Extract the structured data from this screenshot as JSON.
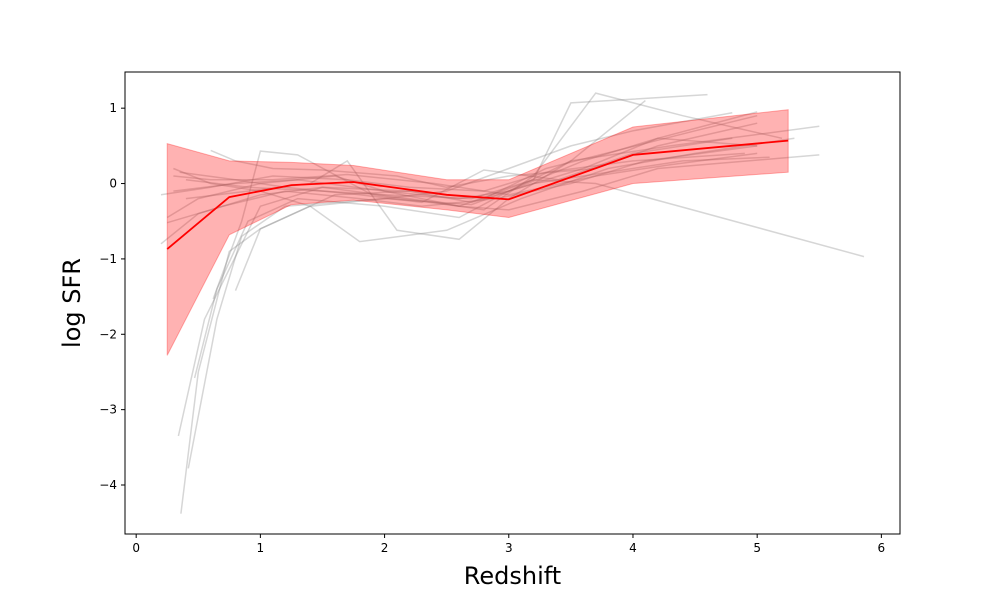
{
  "chart_data": {
    "type": "line",
    "title": "",
    "xlabel": "Redshift",
    "ylabel": "log SFR",
    "xlim": [
      -0.09,
      6.15
    ],
    "ylim": [
      -4.65,
      1.48
    ],
    "xticks": [
      0,
      1,
      2,
      3,
      4,
      5,
      6
    ],
    "yticks": [
      1,
      0,
      -1,
      -2,
      -3,
      -4
    ],
    "xtick_labels": [
      "0",
      "1",
      "2",
      "3",
      "4",
      "5",
      "6"
    ],
    "ytick_labels": [
      "1",
      "0",
      "−1",
      "−2",
      "−3",
      "−4"
    ],
    "grid": false,
    "legend": "none",
    "colors": {
      "median_line": "#ff0000",
      "band_fill": "#ff0000",
      "individual_lines": "#808080"
    },
    "median": {
      "x": [
        0.25,
        0.75,
        1.25,
        1.75,
        2.5,
        3.0,
        4.0,
        5.25
      ],
      "y": [
        -0.87,
        -0.18,
        -0.02,
        0.02,
        -0.15,
        -0.21,
        0.38,
        0.57
      ]
    },
    "band": {
      "x": [
        0.25,
        0.75,
        1.25,
        1.75,
        2.5,
        3.0,
        4.0,
        5.25
      ],
      "lower": [
        -2.28,
        -0.68,
        -0.28,
        -0.22,
        -0.35,
        -0.45,
        0.0,
        0.15
      ],
      "upper": [
        0.53,
        0.3,
        0.28,
        0.24,
        0.05,
        0.05,
        0.75,
        0.98
      ]
    },
    "individual_series": [
      {
        "x": [
          0.36,
          0.5,
          0.75,
          1.0,
          1.6,
          2.2,
          2.8,
          3.3,
          4.5,
          5.0
        ],
        "y": [
          -4.38,
          -2.5,
          -0.9,
          -0.6,
          -0.15,
          -0.1,
          -0.2,
          0.2,
          0.7,
          0.9
        ]
      },
      {
        "x": [
          0.42,
          0.65,
          0.85,
          1.2,
          2.0,
          2.7,
          3.0,
          3.5,
          4.3,
          5.5
        ],
        "y": [
          -3.78,
          -1.8,
          -0.7,
          -0.3,
          -0.2,
          -0.28,
          -0.1,
          0.3,
          0.5,
          0.76
        ]
      },
      {
        "x": [
          0.34,
          0.55,
          1.0,
          1.5,
          2.2,
          2.8,
          3.2,
          3.7,
          4.4,
          5.2
        ],
        "y": [
          -3.35,
          -1.8,
          -0.3,
          -0.05,
          -0.2,
          -0.35,
          0.1,
          1.2,
          0.9,
          0.6
        ]
      },
      {
        "x": [
          0.47,
          0.65,
          0.9,
          1.3,
          2.0,
          2.6,
          3.0,
          3.6,
          4.2,
          5.0
        ],
        "y": [
          -2.58,
          -1.4,
          -0.5,
          -0.2,
          -0.3,
          -0.45,
          -0.1,
          0.3,
          0.6,
          0.5
        ]
      },
      {
        "x": [
          0.62,
          0.85,
          1.0,
          1.3,
          1.9,
          2.6,
          3.2,
          3.5,
          4.6
        ],
        "y": [
          -1.53,
          -0.5,
          0.43,
          0.38,
          -0.15,
          -0.3,
          0.05,
          1.07,
          1.18
        ]
      },
      {
        "x": [
          0.8,
          1.0,
          1.4,
          2.0,
          2.5,
          3.0,
          3.5,
          4.0,
          4.8
        ],
        "y": [
          -1.42,
          -0.6,
          -0.3,
          -0.2,
          -0.1,
          0.2,
          0.5,
          0.7,
          0.94
        ]
      },
      {
        "x": [
          0.6,
          0.8,
          1.1,
          1.5,
          2.1,
          2.5,
          3.0,
          3.7,
          4.2,
          5.0
        ],
        "y": [
          0.44,
          0.3,
          0.2,
          0.18,
          0.1,
          -0.05,
          0.1,
          0.2,
          0.5,
          0.8
        ]
      },
      {
        "x": [
          0.2,
          0.5,
          1.0,
          1.5,
          2.2,
          2.7,
          3.2,
          3.8,
          4.4,
          5.1
        ],
        "y": [
          -0.8,
          -0.4,
          -0.15,
          -0.05,
          -0.1,
          -0.25,
          0.0,
          0.15,
          0.3,
          0.35
        ]
      },
      {
        "x": [
          0.25,
          0.5,
          1.0,
          1.6,
          2.0,
          2.6,
          3.0,
          3.6,
          4.2,
          5.5
        ],
        "y": [
          -0.45,
          -0.2,
          0.0,
          0.1,
          -0.1,
          -0.3,
          -0.35,
          -0.1,
          0.2,
          0.38
        ]
      },
      {
        "x": [
          0.3,
          0.6,
          1.1,
          1.7,
          2.4,
          3.0,
          3.7,
          4.3,
          5.0
        ],
        "y": [
          0.1,
          0.05,
          0.05,
          0.12,
          0.0,
          -0.15,
          0.1,
          0.25,
          0.4
        ]
      },
      {
        "x": [
          0.25,
          0.7,
          1.2,
          1.8,
          2.3,
          2.9,
          3.5,
          4.1,
          5.0
        ],
        "y": [
          -0.52,
          -0.3,
          -0.1,
          -0.2,
          -0.3,
          -0.2,
          0.0,
          0.3,
          0.5
        ]
      },
      {
        "x": [
          0.3,
          0.6,
          1.0,
          1.4,
          1.8,
          2.5,
          3.1,
          3.8,
          4.5,
          5.3
        ],
        "y": [
          0.2,
          0.0,
          -0.1,
          -0.3,
          -0.77,
          -0.62,
          -0.2,
          0.2,
          0.4,
          0.6
        ]
      },
      {
        "x": [
          0.35,
          0.8,
          1.2,
          1.8,
          2.3,
          2.8,
          3.4,
          4.0,
          4.8
        ],
        "y": [
          0.15,
          0.05,
          -0.05,
          -0.15,
          -0.25,
          0.18,
          0.05,
          0.4,
          0.6
        ]
      },
      {
        "x": [
          0.4,
          0.9,
          1.4,
          1.7,
          2.1,
          2.6,
          3.0,
          3.5,
          4.1
        ],
        "y": [
          -0.2,
          -0.1,
          0.0,
          0.3,
          -0.62,
          -0.74,
          -0.2,
          0.3,
          1.1
        ]
      },
      {
        "x": [
          0.3,
          0.8,
          1.3,
          2.0,
          2.6,
          3.0,
          3.6,
          4.2,
          5.0
        ],
        "y": [
          -0.1,
          0.0,
          0.05,
          -0.1,
          -0.2,
          -0.1,
          0.2,
          0.6,
          0.95
        ]
      },
      {
        "x": [
          0.4,
          0.9,
          1.5,
          2.0,
          2.7,
          3.2,
          3.7,
          5.86
        ],
        "y": [
          0.05,
          -0.05,
          -0.1,
          -0.15,
          -0.2,
          0.05,
          0.0,
          -0.97
        ]
      },
      {
        "x": [
          0.2,
          0.6,
          1.1,
          1.7,
          2.2,
          2.8,
          3.3,
          4.0,
          4.9
        ],
        "y": [
          -0.15,
          -0.05,
          0.1,
          0.05,
          -0.05,
          -0.1,
          0.15,
          0.3,
          0.4
        ]
      }
    ]
  }
}
